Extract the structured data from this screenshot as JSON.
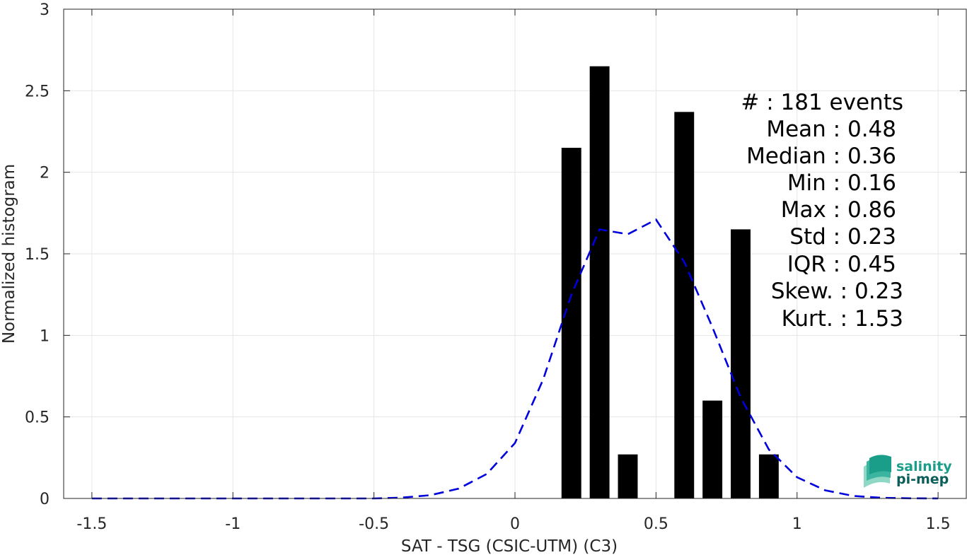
{
  "chart_data": {
    "type": "bar",
    "xlabel": "SAT - TSG (CSIC-UTM) (C3)",
    "ylabel": "Normalized histogram",
    "xlim": [
      -1.6,
      1.6
    ],
    "ylim": [
      0,
      3
    ],
    "xticks": [
      -1.5,
      -1,
      -0.5,
      0,
      0.5,
      1,
      1.5
    ],
    "xtick_labels": [
      "-1.5",
      "-1",
      "-0.5",
      "0",
      "0.5",
      "1",
      "1.5"
    ],
    "yticks": [
      0,
      0.5,
      1,
      1.5,
      2,
      2.5,
      3
    ],
    "ytick_labels": [
      "0",
      "0.5",
      "1",
      "1.5",
      "2",
      "2.5",
      "3"
    ],
    "grid": true,
    "bar_width": 0.07,
    "bars": [
      {
        "x": 0.2,
        "value": 2.15
      },
      {
        "x": 0.3,
        "value": 2.65
      },
      {
        "x": 0.4,
        "value": 0.27
      },
      {
        "x": 0.6,
        "value": 2.37
      },
      {
        "x": 0.7,
        "value": 0.6
      },
      {
        "x": 0.8,
        "value": 1.65
      },
      {
        "x": 0.9,
        "value": 0.27
      }
    ],
    "fit_curve": {
      "style": "dashed",
      "color": "#0000dd",
      "x": [
        -1.5,
        -1.4,
        -1.3,
        -1.2,
        -1.1,
        -1.0,
        -0.9,
        -0.8,
        -0.7,
        -0.6,
        -0.5,
        -0.4,
        -0.3,
        -0.2,
        -0.1,
        0.0,
        0.1,
        0.2,
        0.3,
        0.4,
        0.5,
        0.6,
        0.7,
        0.8,
        0.9,
        1.0,
        1.1,
        1.2,
        1.3,
        1.4,
        1.5
      ],
      "y": [
        0,
        0,
        0,
        0,
        0,
        0,
        0,
        0,
        0,
        0,
        0,
        0.005,
        0.02,
        0.06,
        0.15,
        0.34,
        0.73,
        1.25,
        1.65,
        1.62,
        1.71,
        1.45,
        1.05,
        0.62,
        0.3,
        0.13,
        0.05,
        0.015,
        0.004,
        0.001,
        0
      ]
    },
    "stats": [
      "#  : 181 events",
      "Mean : 0.48",
      "Median : 0.36",
      "Min : 0.16",
      "Max : 0.86",
      "Std : 0.23",
      "IQR : 0.45",
      "Skew. : 0.23",
      "Kurt. : 1.53"
    ],
    "colors": {
      "bars": "#000000",
      "grid": "#e6e6e6",
      "axes": "#262626",
      "logo_primary": "#1a9e8a",
      "logo_secondary": "#0b5e5a"
    }
  },
  "logo": {
    "line1": "salinity",
    "line2": "pi-mep"
  }
}
